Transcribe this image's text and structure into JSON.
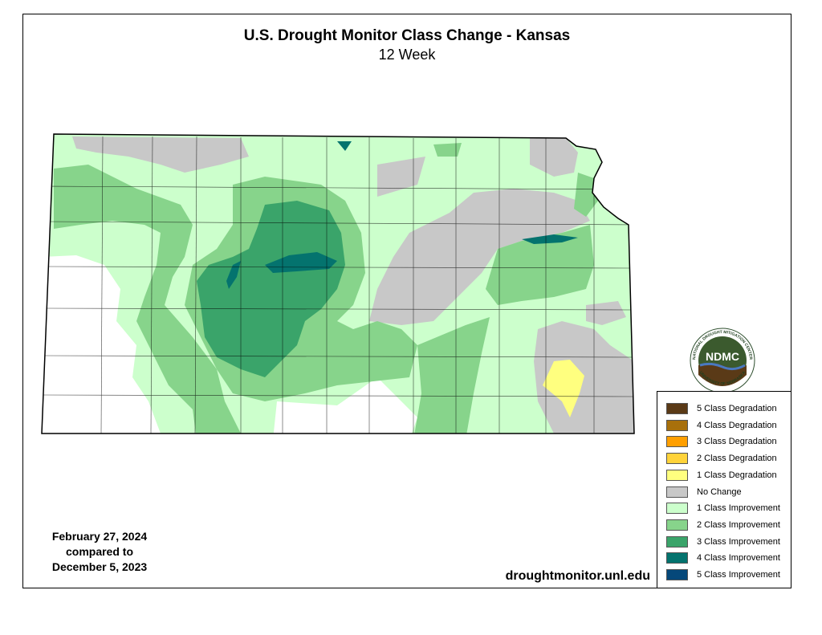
{
  "title": "U.S. Drought Monitor Class Change - Kansas",
  "subtitle": "12 Week",
  "dates": {
    "line1": "February 27, 2024",
    "line2": "compared to",
    "line3": "December 5, 2023"
  },
  "url": "droughtmonitor.unl.edu",
  "logo": {
    "text": "NDMC",
    "ring_top": "NATIONAL DROUGHT MITIGATION CENTER",
    "ring_bottom": "UNIVERSITY OF NEBRASKA"
  },
  "legend": [
    {
      "label": "5 Class Degradation",
      "color": "#5a3a17"
    },
    {
      "label": "4 Class Degradation",
      "color": "#a8700b"
    },
    {
      "label": "3 Class Degradation",
      "color": "#ff9f00"
    },
    {
      "label": "2 Class Degradation",
      "color": "#ffd33a"
    },
    {
      "label": "1 Class Degradation",
      "color": "#ffff7f"
    },
    {
      "label": "No Change",
      "color": "#c8c8c8"
    },
    {
      "label": "1 Class Improvement",
      "color": "#ccffcc"
    },
    {
      "label": "2 Class Improvement",
      "color": "#87d48b"
    },
    {
      "label": "3 Class Improvement",
      "color": "#3aa46a"
    },
    {
      "label": "4 Class Improvement",
      "color": "#04736e"
    },
    {
      "label": "5 Class Improvement",
      "color": "#05487a"
    }
  ]
}
